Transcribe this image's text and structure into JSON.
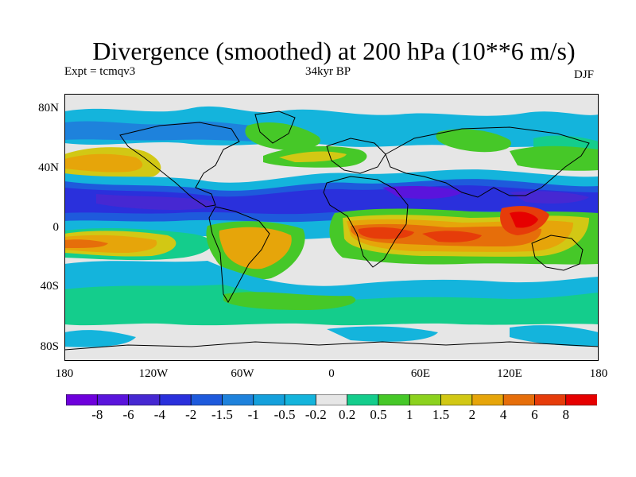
{
  "header": {
    "title": "Divergence (smoothed) at 200 hPa (10**6 m/s)",
    "experiment": "Expt = tcmqv3",
    "period": "34kyr BP",
    "season": "DJF"
  },
  "map": {
    "type": "world filled-contour map",
    "projection": "cylindrical equidistant",
    "lon_range": [
      -180,
      180
    ],
    "lat_range": [
      -90,
      90
    ],
    "lat_tick_labels": [
      "80N",
      "40N",
      "0",
      "40S",
      "80S"
    ],
    "lon_tick_labels": [
      "180",
      "120W",
      "60W",
      "0",
      "60E",
      "120E",
      "180"
    ],
    "features": [
      "negative (convergence, blue/purple) band across the northern subtropics near 10N-35N",
      "positive (divergence, orange/red) over tropical Africa, Indian Ocean and the maritime continent near 0-20S",
      "positive band over the tropical South Pacific and South America near 10S-20S",
      "near-zero grey over polar regions"
    ]
  },
  "colorbar": {
    "labels": [
      "-8",
      "-6",
      "-4",
      "-2",
      "-1.5",
      "-1",
      "-0.5",
      "-0.2",
      "0.2",
      "0.5",
      "1",
      "1.5",
      "2",
      "4",
      "6",
      "8"
    ],
    "colors": [
      "#6e00dc",
      "#5a14dc",
      "#4628d2",
      "#2a30dc",
      "#1e5adc",
      "#1e82dc",
      "#14a0dc",
      "#14b4dc",
      "#e6e6e6",
      "#14cd8c",
      "#46c828",
      "#8cd21e",
      "#d2c814",
      "#e6a50a",
      "#e66e0a",
      "#e63c0a",
      "#e60000"
    ]
  }
}
